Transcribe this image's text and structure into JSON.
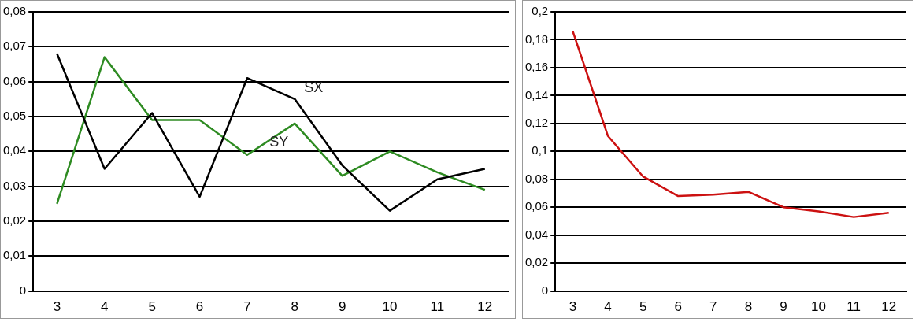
{
  "chart_data": [
    {
      "type": "line",
      "categories": [
        "3",
        "4",
        "5",
        "6",
        "7",
        "8",
        "9",
        "10",
        "11",
        "12"
      ],
      "series": [
        {
          "name": "SX",
          "color": "#000000",
          "values": [
            0.068,
            0.035,
            0.051,
            0.027,
            0.061,
            0.055,
            0.036,
            0.023,
            0.032,
            0.035
          ]
        },
        {
          "name": "SY",
          "color": "#2e8b22",
          "values": [
            0.025,
            0.067,
            0.049,
            0.049,
            0.039,
            0.048,
            0.033,
            0.04,
            0.034,
            0.029
          ]
        }
      ],
      "ylim": [
        0,
        0.08
      ],
      "yticks": [
        0,
        {
          "value": 0.01,
          "label": "0,01"
        },
        {
          "value": 0.02,
          "label": "0,02"
        },
        {
          "value": 0.03,
          "label": "0,03"
        },
        {
          "value": 0.04,
          "label": "0,04"
        },
        {
          "value": 0.05,
          "label": "0,05"
        },
        {
          "value": 0.06,
          "label": "0,06"
        },
        {
          "value": 0.07,
          "label": "0,07"
        },
        {
          "value": 0.08,
          "label": "0,08"
        }
      ],
      "grid": "y",
      "legend": false,
      "marker": "none"
    },
    {
      "type": "line",
      "categories": [
        "3",
        "4",
        "5",
        "6",
        "7",
        "8",
        "9",
        "10",
        "11",
        "12"
      ],
      "series": [
        {
          "color": "#cc1111",
          "values": [
            0.186,
            0.111,
            0.082,
            0.068,
            0.069,
            0.071,
            0.06,
            0.057,
            0.053,
            0.056
          ]
        }
      ],
      "ylim": [
        0,
        0.2
      ],
      "yticks": [
        0,
        {
          "value": 0.02,
          "label": "0,02"
        },
        {
          "value": 0.04,
          "label": "0,04"
        },
        {
          "value": 0.06,
          "label": "0,06"
        },
        {
          "value": 0.08,
          "label": "0,08"
        },
        {
          "value": 0.1,
          "label": "0,1"
        },
        {
          "value": 0.12,
          "label": "0,12"
        },
        {
          "value": 0.14,
          "label": "0,14"
        },
        {
          "value": 0.16,
          "label": "0,16"
        },
        {
          "value": 0.18,
          "label": "0,18"
        },
        {
          "value": 0.2,
          "label": "0,2"
        }
      ],
      "grid": "y",
      "legend": false,
      "marker": "none"
    }
  ]
}
